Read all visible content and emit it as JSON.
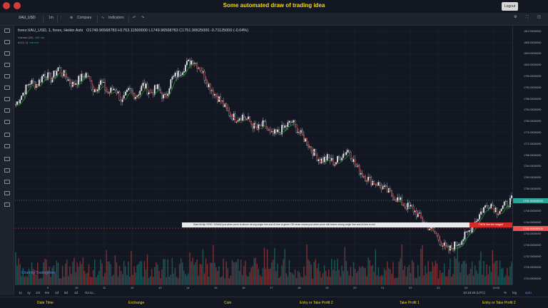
{
  "page": {
    "title": "Some automated draw of trading idea",
    "logout_label": "Logout"
  },
  "toolbar": {
    "symbol": "XAU_USD",
    "interval": "1m",
    "compare_label": "Compare",
    "indicators_label": "Indicators"
  },
  "legend": {
    "line1": "forex:XAU_USD, 1, forex, Heikin Ashi",
    "ohlc": "O1749.96568783  H1753.11500000  L1749.96568783  C1751.90625000  -0.71125000 (-0.04%)",
    "volume": "Volume (20)",
    "volume_vals": "440  n/a",
    "ai": "AI (1, 1)",
    "ai_vals": "n/a  n/a"
  },
  "price_axis": {
    "ticks": [
      "1812.00000000",
      "1808.00000000",
      "1804.00000000",
      "1800.00000000",
      "1796.00000000",
      "1792.00000000",
      "1788.00000000",
      "1784.00000000",
      "1780.00000000",
      "1776.00000000",
      "1772.00000000",
      "1768.00000000",
      "1764.00000000",
      "1760.00000000",
      "1756.00000000",
      "1752.00000000",
      "1748.00000000",
      "1744.00000000",
      "1740.00000000",
      "1736.00000000",
      "1732.00000000",
      "1728.00000000",
      "1724.00000000"
    ],
    "current_price": "1751.90625000",
    "line_price": "1742.00000000"
  },
  "time_axis": [
    "9",
    "10",
    "11",
    "12",
    "13",
    "14",
    "15",
    "16",
    "17",
    "18",
    "19",
    "20",
    "21",
    "22",
    "23",
    "24",
    "13:00"
  ],
  "bottom_bar": {
    "ranges": [
      "1y",
      "1y",
      "1m",
      "5m",
      "1d",
      "5d",
      "1d",
      "Go to..."
    ],
    "clock": "10:15:26 (UTC)",
    "pct": "%",
    "log": "log",
    "auto": "auto"
  },
  "banner": {
    "text": "Start till flip FIRE !    DRAW just when  price is above strong angle line and AI line is green        OR        draw shorts just when price still below strong angle line and AI line is red",
    "magic": "THEN See the magic!!"
  },
  "watermark": "Chart by TradingView",
  "footer": [
    "Date Time",
    "Exchange",
    "Coin",
    "Entry or Take Profit 2",
    "Take Profit 1",
    "Entry or Take Profit 2"
  ],
  "colors": {
    "accent": "#f5d90a",
    "bull": "#26a69a",
    "bear": "#ef5350",
    "ai_green": "#1b8f2a",
    "ai_red": "#c21a1a",
    "bg": "#131722"
  },
  "chart_data": {
    "type": "candlestick",
    "title": "forex:XAU_USD, 1, forex, Heikin Ashi",
    "ylim": [
      1722,
      1814
    ],
    "x_ticks": [
      "9",
      "10",
      "11",
      "12",
      "13",
      "14",
      "15",
      "16",
      "17",
      "18",
      "19",
      "20",
      "21",
      "22",
      "23",
      "24",
      "13:00"
    ],
    "close_path": [
      1786,
      1790,
      1794,
      1793,
      1797,
      1795,
      1799,
      1796,
      1793,
      1795,
      1797,
      1791,
      1794,
      1790,
      1792,
      1787,
      1791,
      1789,
      1793,
      1790,
      1792,
      1788,
      1795,
      1797,
      1800,
      1802,
      1799,
      1794,
      1790,
      1787,
      1783,
      1781,
      1782,
      1780,
      1777,
      1779,
      1775,
      1776,
      1778,
      1780,
      1776,
      1773,
      1769,
      1766,
      1767,
      1765,
      1768,
      1770,
      1764,
      1761,
      1759,
      1758,
      1756,
      1754,
      1752,
      1750,
      1749,
      1746,
      1743,
      1741,
      1737,
      1734,
      1736,
      1738,
      1741,
      1745,
      1749,
      1751,
      1748,
      1750,
      1752
    ]
  }
}
